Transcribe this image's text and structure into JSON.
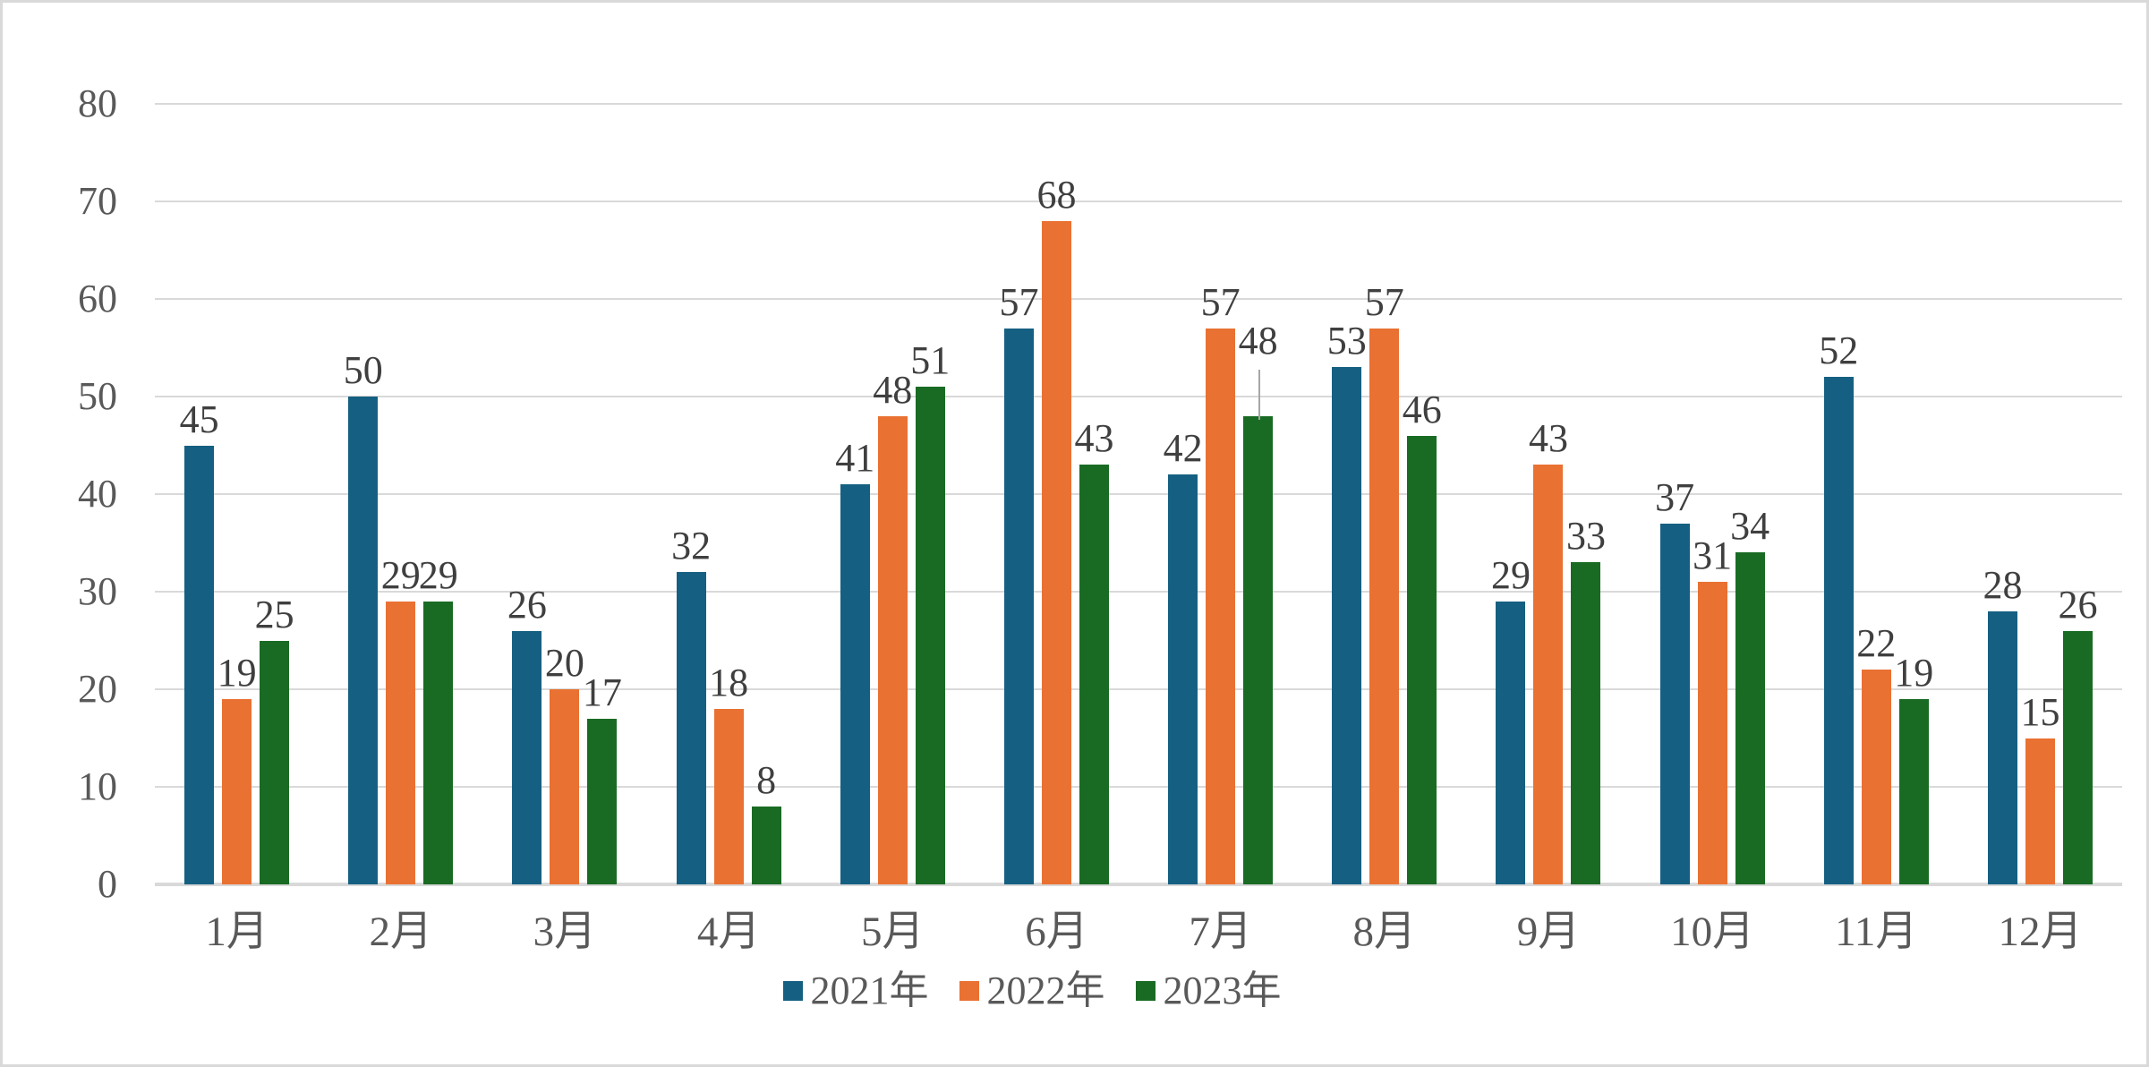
{
  "chart_data": {
    "type": "bar",
    "categories": [
      "1月",
      "2月",
      "3月",
      "4月",
      "5月",
      "6月",
      "7月",
      "8月",
      "9月",
      "10月",
      "11月",
      "12月"
    ],
    "series": [
      {
        "name": "2021年",
        "color": "#156082",
        "values": [
          45,
          50,
          26,
          32,
          41,
          57,
          42,
          53,
          29,
          37,
          52,
          28
        ]
      },
      {
        "name": "2022年",
        "color": "#E97132",
        "values": [
          19,
          29,
          20,
          18,
          48,
          68,
          57,
          57,
          43,
          31,
          22,
          15
        ]
      },
      {
        "name": "2023年",
        "color": "#196B24",
        "values": [
          25,
          29,
          17,
          8,
          51,
          43,
          48,
          46,
          33,
          34,
          19,
          26
        ]
      }
    ],
    "title": "",
    "xlabel": "",
    "ylabel": "",
    "ylim": [
      0,
      80
    ],
    "yticks": [
      0,
      10,
      20,
      30,
      40,
      50,
      60,
      70,
      80
    ],
    "grid": true,
    "data_labels": true,
    "legend_position": "bottom",
    "annotations": {
      "label_callout": {
        "category_index": 6,
        "series_index": 2,
        "note": "data label raised above bar with vertical leader line"
      }
    }
  },
  "colors": {
    "background": "#FFFFFF",
    "chart_border": "#D9D9D9",
    "gridline": "#D9D9D9",
    "axis_line": "#D9D9D9",
    "tick_text": "#595959",
    "data_label_text": "#3F3F3F",
    "leader_line": "#A6A6A6"
  }
}
